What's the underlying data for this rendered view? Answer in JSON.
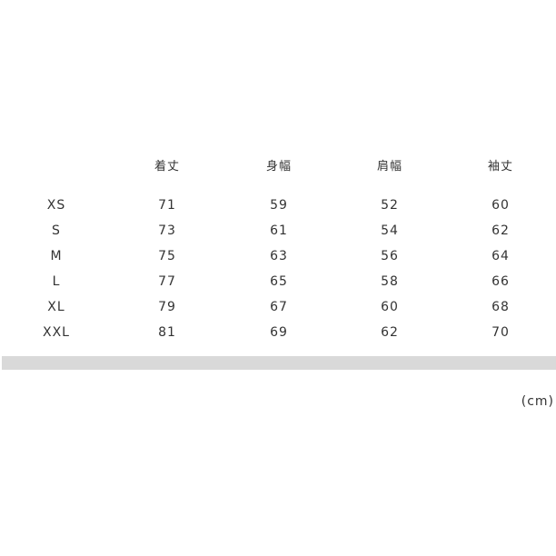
{
  "table": {
    "headers": [
      "",
      "着丈",
      "身幅",
      "肩幅",
      "袖丈"
    ],
    "rows": [
      [
        "XS",
        "71",
        "59",
        "52",
        "60"
      ],
      [
        "S",
        "73",
        "61",
        "54",
        "62"
      ],
      [
        "M",
        "75",
        "63",
        "56",
        "64"
      ],
      [
        "L",
        "77",
        "65",
        "58",
        "66"
      ],
      [
        "XL",
        "79",
        "67",
        "60",
        "68"
      ],
      [
        "XXL",
        "81",
        "69",
        "62",
        "70"
      ]
    ]
  },
  "unit": "(cm)",
  "colors": {
    "text": "#333333",
    "divider": "#d9d9d9"
  }
}
